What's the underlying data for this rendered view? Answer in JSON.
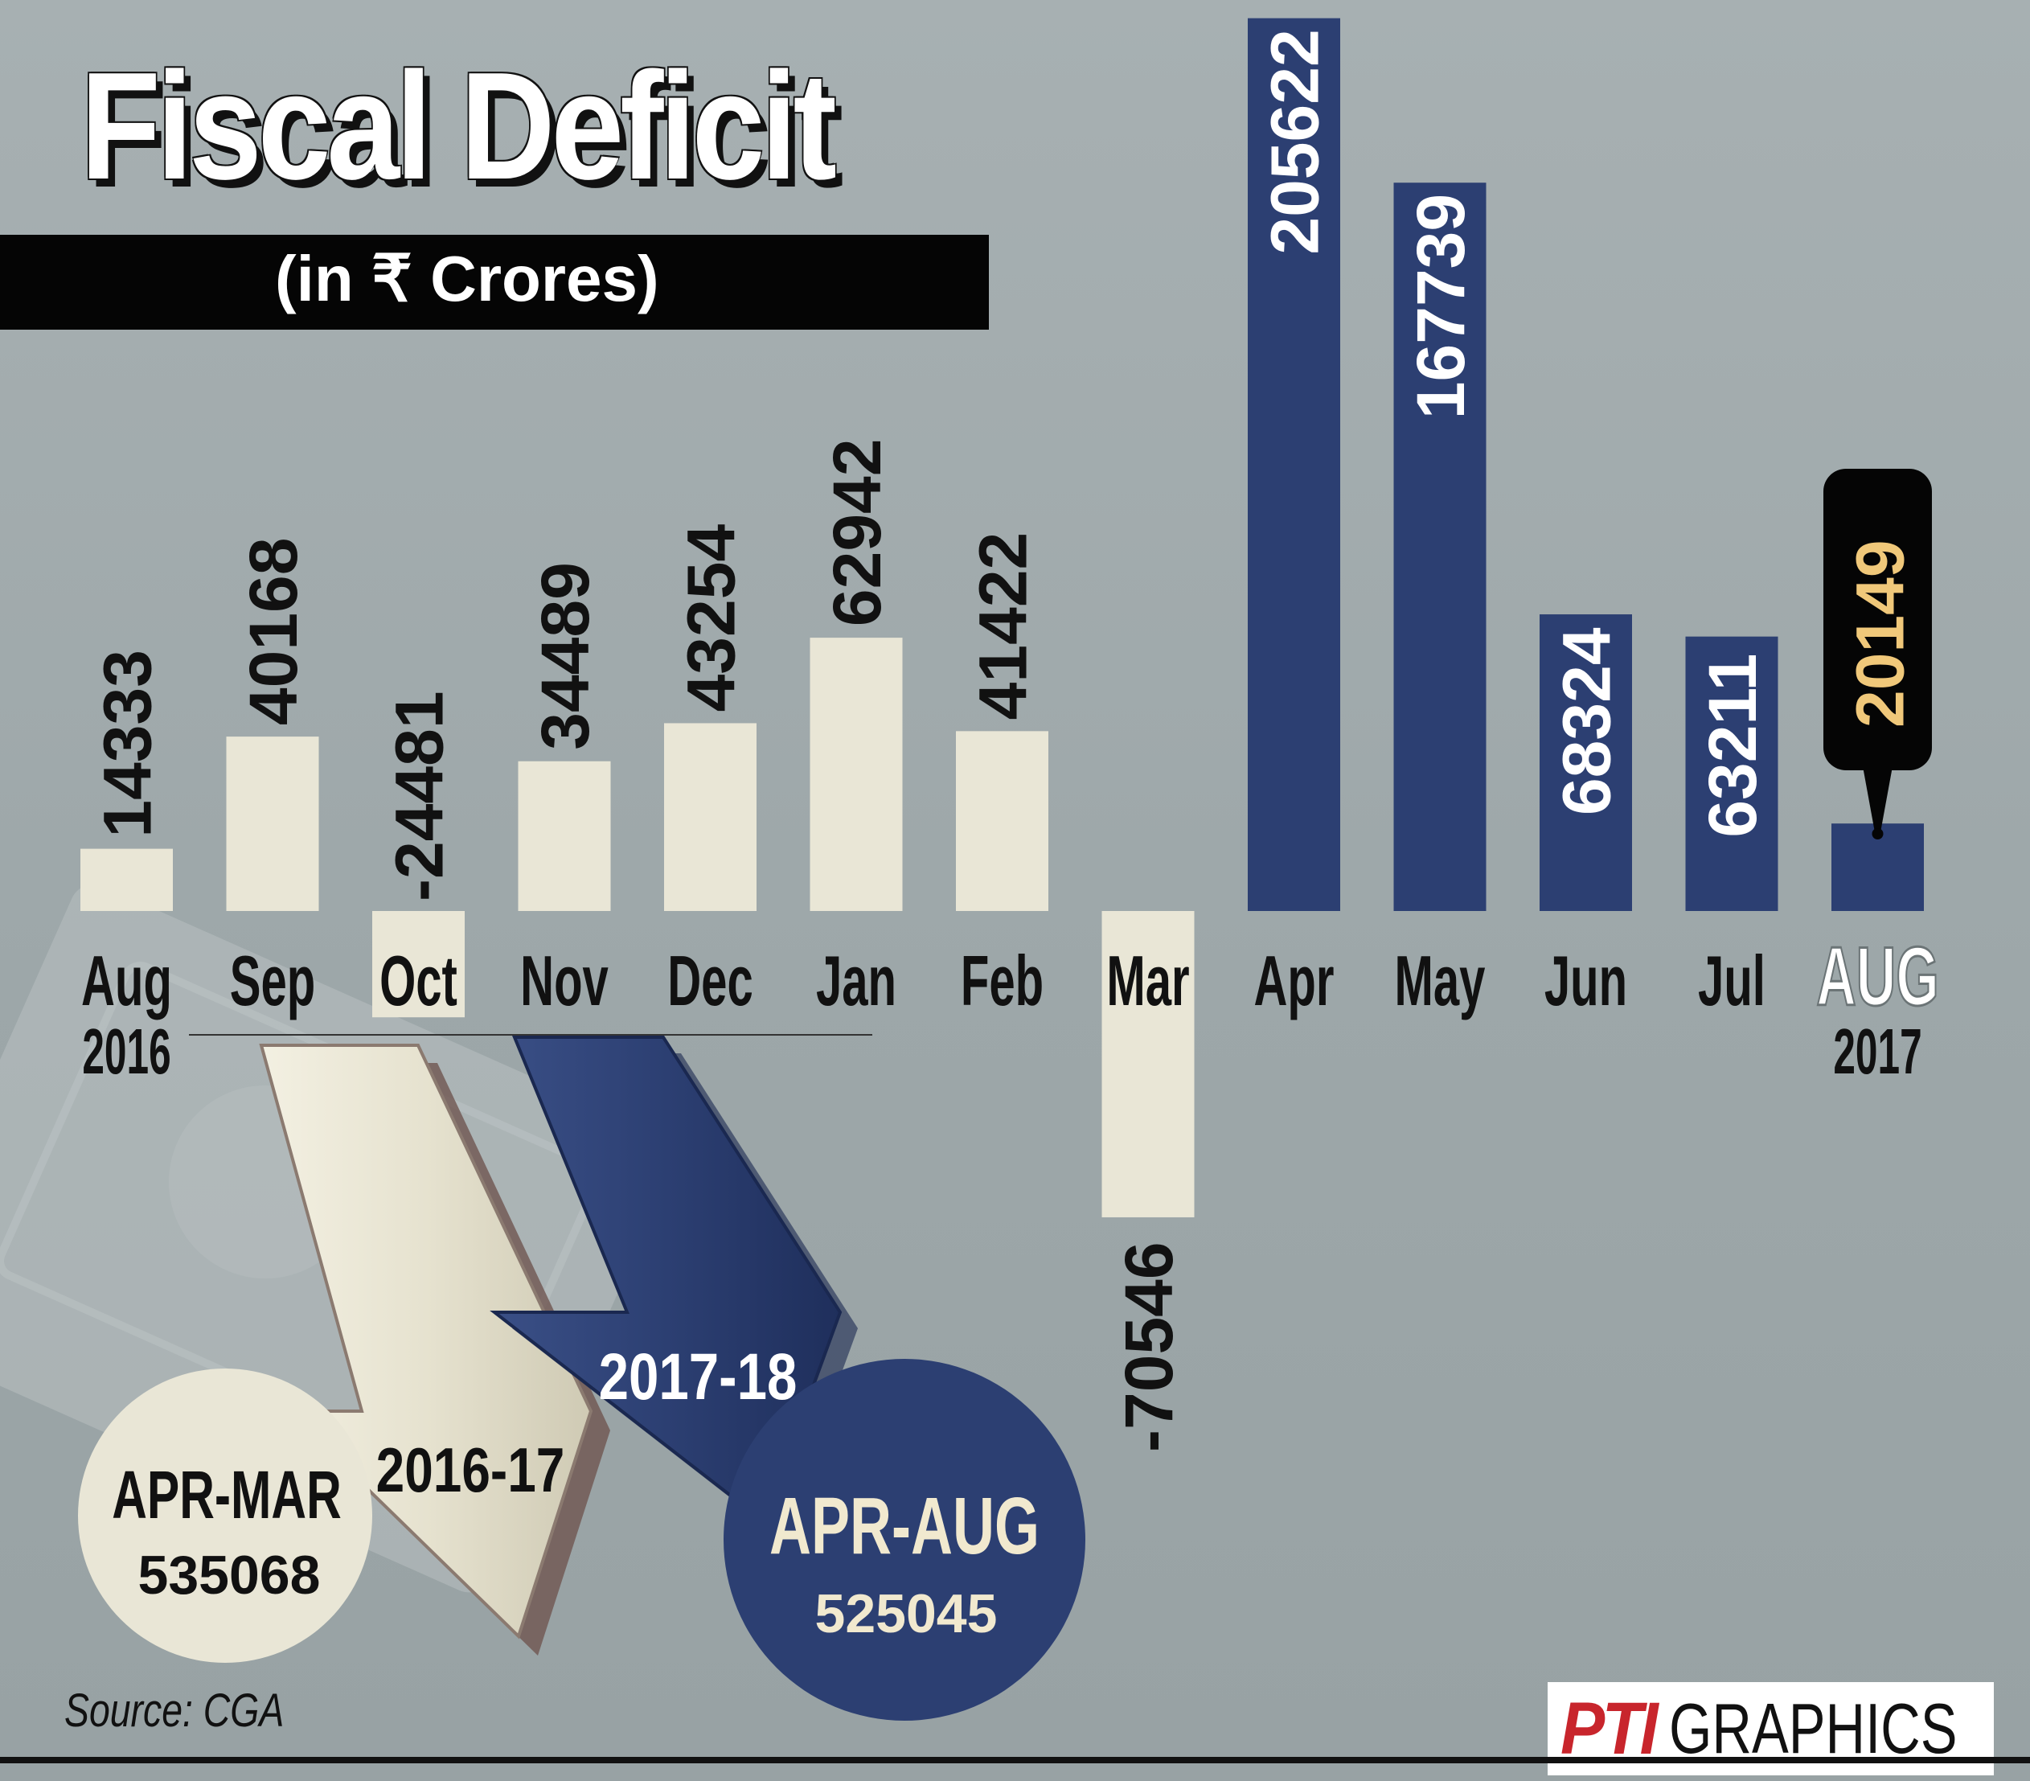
{
  "title": "Fiscal Deficit",
  "subtitle": "(in ₹ Crores)",
  "source": "Source: CGA",
  "credit": {
    "mark": "PTI",
    "text": "GRAPHICS"
  },
  "colors": {
    "background": "#9fa9ab",
    "bar_2016_17": "#e9e6d6",
    "bar_2017_18": "#2c3f72",
    "highlight_label": "#f0c87a",
    "callout": "#050505"
  },
  "chart_data": {
    "type": "bar",
    "orientation": "vertical",
    "categories": [
      "Aug",
      "Sep",
      "Oct",
      "Nov",
      "Dec",
      "Jan",
      "Feb",
      "Mar",
      "Apr",
      "May",
      "Jun",
      "Jul",
      "AUG"
    ],
    "year_labels": [
      {
        "category": "Aug",
        "year": "2016"
      },
      {
        "category": "AUG",
        "year": "2017"
      }
    ],
    "series": [
      {
        "name": "2016-17",
        "color": "#e9e6d6",
        "values": [
          14333,
          40168,
          -24481,
          34489,
          43254,
          62942,
          41422,
          -70546,
          null,
          null,
          null,
          null,
          null
        ]
      },
      {
        "name": "2017-18",
        "color": "#2c3f72",
        "values": [
          null,
          null,
          null,
          null,
          null,
          null,
          null,
          null,
          205622,
          167739,
          68324,
          63211,
          20149
        ]
      }
    ],
    "value_labels": [
      "14333",
      "40168",
      "-24481",
      "34489",
      "43254",
      "62942",
      "41422",
      "-70546",
      "205622",
      "167739",
      "68324",
      "63211",
      "20149"
    ],
    "highlight": {
      "category": "AUG",
      "label": "20149"
    },
    "ylim": [
      -80000,
      210000
    ],
    "grid": false,
    "legend": "none",
    "annotations": [
      {
        "period": "APR-MAR",
        "year": "2016-17",
        "total": "535068"
      },
      {
        "period": "APR-AUG",
        "year": "2017-18",
        "total": "525045"
      }
    ]
  }
}
